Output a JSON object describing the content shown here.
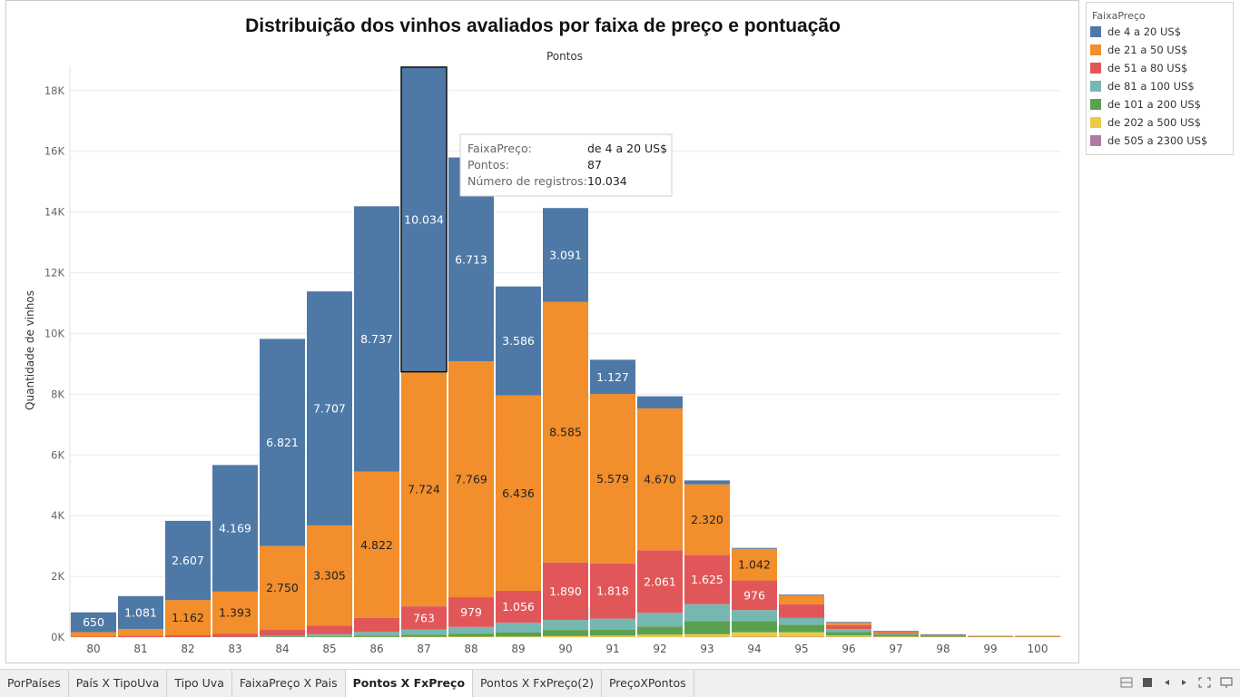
{
  "chart_data": {
    "type": "bar",
    "stacked": true,
    "title": "Distribuição dos vinhos avaliados por faixa de preço e pontuação",
    "top_axis_label": "Pontos",
    "ylabel": "Quantidade de vinhos",
    "ylim": [
      0,
      18800
    ],
    "yticks": [
      0,
      2000,
      4000,
      6000,
      8000,
      10000,
      12000,
      14000,
      16000,
      18000
    ],
    "ytick_labels": [
      "0K",
      "2K",
      "4K",
      "6K",
      "8K",
      "10K",
      "12K",
      "14K",
      "16K",
      "18K"
    ],
    "grid": true,
    "legend_position": "right",
    "categories": [
      "80",
      "81",
      "82",
      "83",
      "84",
      "85",
      "86",
      "87",
      "88",
      "89",
      "90",
      "91",
      "92",
      "93",
      "94",
      "95",
      "96",
      "97",
      "98",
      "99",
      "100"
    ],
    "series": [
      {
        "name": "de 505 a 2300 US$",
        "color": "#b07aa1",
        "values": [
          0,
          0,
          0,
          0,
          0,
          0,
          0,
          0,
          0,
          0,
          0,
          0,
          0,
          5,
          10,
          10,
          6,
          5,
          3,
          2,
          5
        ]
      },
      {
        "name": "de 202 a 500 US$",
        "color": "#edc948",
        "values": [
          0,
          0,
          0,
          0,
          2,
          3,
          5,
          10,
          15,
          20,
          35,
          50,
          80,
          90,
          150,
          150,
          50,
          20,
          10,
          3,
          5
        ]
      },
      {
        "name": "de 101 a 200 US$",
        "color": "#59a14f",
        "values": [
          0,
          0,
          0,
          0,
          8,
          20,
          45,
          70,
          100,
          130,
          200,
          200,
          270,
          430,
          370,
          250,
          110,
          50,
          20,
          6,
          6
        ]
      },
      {
        "name": "de 81 a 100 US$",
        "color": "#76b7b2",
        "values": [
          0,
          0,
          0,
          5,
          25,
          70,
          120,
          170,
          220,
          320,
          330,
          360,
          450,
          560,
          360,
          220,
          100,
          40,
          15,
          4,
          3
        ]
      },
      {
        "name": "de 51 a 80 US$",
        "color": "#e15759",
        "values": [
          15,
          30,
          60,
          100,
          215,
          280,
          460,
          763,
          979,
          1056,
          1890,
          1818,
          2061,
          1625,
          976,
          450,
          130,
          40,
          10,
          3,
          2
        ]
      },
      {
        "name": "de 21 a 50 US$",
        "color": "#f28e2b",
        "values": [
          150,
          240,
          1162,
          1393,
          2750,
          3305,
          4822,
          7724,
          7769,
          6436,
          8585,
          5579,
          4670,
          2320,
          1042,
          300,
          80,
          30,
          10,
          2,
          3
        ]
      },
      {
        "name": "de 4 a 20 US$",
        "color": "#4e79a7",
        "values": [
          650,
          1081,
          2607,
          4169,
          6821,
          7707,
          8737,
          10034,
          6713,
          3586,
          3091,
          1127,
          400,
          130,
          30,
          20,
          5,
          5,
          2,
          0,
          0
        ]
      }
    ],
    "value_labels": [
      {
        "category": "80",
        "series": "de 4 a 20 US$",
        "text": "650"
      },
      {
        "category": "81",
        "series": "de 4 a 20 US$",
        "text": "1.081"
      },
      {
        "category": "82",
        "series": "de 4 a 20 US$",
        "text": "2.607"
      },
      {
        "category": "83",
        "series": "de 4 a 20 US$",
        "text": "4.169"
      },
      {
        "category": "84",
        "series": "de 4 a 20 US$",
        "text": "6.821"
      },
      {
        "category": "85",
        "series": "de 4 a 20 US$",
        "text": "7.707"
      },
      {
        "category": "86",
        "series": "de 4 a 20 US$",
        "text": "8.737"
      },
      {
        "category": "87",
        "series": "de 4 a 20 US$",
        "text": "10.034"
      },
      {
        "category": "88",
        "series": "de 4 a 20 US$",
        "text": "6.713"
      },
      {
        "category": "89",
        "series": "de 4 a 20 US$",
        "text": "3.586"
      },
      {
        "category": "90",
        "series": "de 4 a 20 US$",
        "text": "3.091"
      },
      {
        "category": "91",
        "series": "de 4 a 20 US$",
        "text": "1.127"
      },
      {
        "category": "82",
        "series": "de 21 a 50 US$",
        "text": "1.162"
      },
      {
        "category": "83",
        "series": "de 21 a 50 US$",
        "text": "1.393"
      },
      {
        "category": "84",
        "series": "de 21 a 50 US$",
        "text": "2.750"
      },
      {
        "category": "85",
        "series": "de 21 a 50 US$",
        "text": "3.305"
      },
      {
        "category": "86",
        "series": "de 21 a 50 US$",
        "text": "4.822"
      },
      {
        "category": "87",
        "series": "de 21 a 50 US$",
        "text": "7.724"
      },
      {
        "category": "88",
        "series": "de 21 a 50 US$",
        "text": "7.769"
      },
      {
        "category": "89",
        "series": "de 21 a 50 US$",
        "text": "6.436"
      },
      {
        "category": "90",
        "series": "de 21 a 50 US$",
        "text": "8.585"
      },
      {
        "category": "91",
        "series": "de 21 a 50 US$",
        "text": "5.579"
      },
      {
        "category": "92",
        "series": "de 21 a 50 US$",
        "text": "4.670"
      },
      {
        "category": "93",
        "series": "de 21 a 50 US$",
        "text": "2.320"
      },
      {
        "category": "94",
        "series": "de 21 a 50 US$",
        "text": "1.042"
      },
      {
        "category": "87",
        "series": "de 51 a 80 US$",
        "text": "763"
      },
      {
        "category": "88",
        "series": "de 51 a 80 US$",
        "text": "979"
      },
      {
        "category": "89",
        "series": "de 51 a 80 US$",
        "text": "1.056"
      },
      {
        "category": "90",
        "series": "de 51 a 80 US$",
        "text": "1.890"
      },
      {
        "category": "91",
        "series": "de 51 a 80 US$",
        "text": "1.818"
      },
      {
        "category": "92",
        "series": "de 51 a 80 US$",
        "text": "2.061"
      },
      {
        "category": "93",
        "series": "de 51 a 80 US$",
        "text": "1.625"
      },
      {
        "category": "94",
        "series": "de 51 a 80 US$",
        "text": "976"
      }
    ],
    "highlight": {
      "category": "87",
      "series": "de 4 a 20 US$"
    },
    "tooltip": {
      "rows": [
        {
          "label": "FaixaPreço:",
          "value": "de 4 a 20 US$"
        },
        {
          "label": "Pontos:",
          "value": "87"
        },
        {
          "label": "Número de registros:",
          "value": "10.034"
        }
      ]
    }
  },
  "legend": {
    "title": "FaixaPreço",
    "items": [
      {
        "label": "de 4 a 20 US$",
        "color": "#4e79a7"
      },
      {
        "label": "de 21 a 50 US$",
        "color": "#f28e2b"
      },
      {
        "label": "de 51 a 80 US$",
        "color": "#e15759"
      },
      {
        "label": "de 81 a 100 US$",
        "color": "#76b7b2"
      },
      {
        "label": "de 101 a 200 US$",
        "color": "#59a14f"
      },
      {
        "label": "de 202 a 500 US$",
        "color": "#edc948"
      },
      {
        "label": "de 505 a 2300 US$",
        "color": "#b07aa1"
      }
    ]
  },
  "tabs": {
    "items": [
      {
        "label": "PorPaíses"
      },
      {
        "label": "País X TipoUva"
      },
      {
        "label": "Tipo Uva"
      },
      {
        "label": "FaixaPreço X Pais"
      },
      {
        "label": "Pontos X FxPreço",
        "active": true
      },
      {
        "label": "Pontos X FxPreço(2)"
      },
      {
        "label": "PreçoXPontos"
      }
    ]
  },
  "controls": {
    "icons": [
      "grid-view-icon",
      "filmstrip-icon",
      "prev-sheet-icon",
      "next-sheet-icon",
      "fit-screen-icon",
      "presentation-icon"
    ]
  }
}
